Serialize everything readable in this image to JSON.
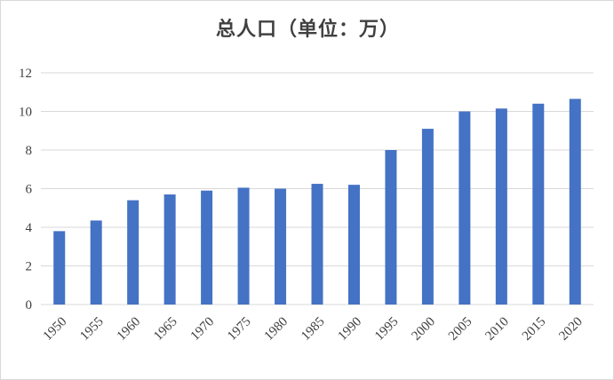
{
  "chart_data": {
    "type": "bar",
    "title": "总人口（单位：万）",
    "xlabel": "",
    "ylabel": "",
    "categories": [
      "1950",
      "1955",
      "1960",
      "1965",
      "1970",
      "1975",
      "1980",
      "1985",
      "1990",
      "1995",
      "2000",
      "2005",
      "2010",
      "2015",
      "2020"
    ],
    "series": [
      {
        "values": [
          3.8,
          4.35,
          5.4,
          5.7,
          5.9,
          6.05,
          6.0,
          6.25,
          6.2,
          8.0,
          9.1,
          10.0,
          10.15,
          10.4,
          10.65
        ],
        "color": "#4472c4"
      }
    ],
    "ylim": [
      0,
      12
    ],
    "yticks": [
      0,
      2,
      4,
      6,
      8,
      10,
      12
    ],
    "grid": true,
    "legend": "none"
  }
}
